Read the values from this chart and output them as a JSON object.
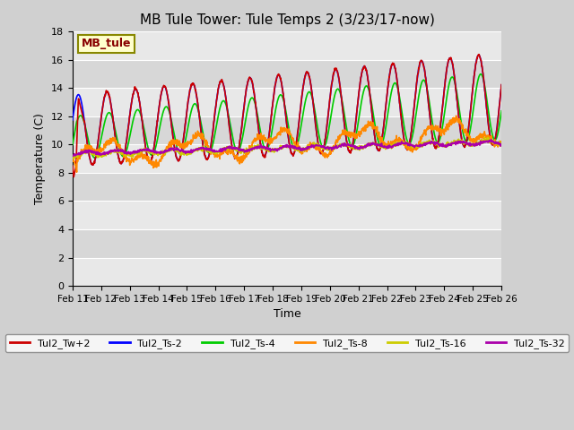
{
  "title": "MB Tule Tower: Tule Temps 2 (3/23/17-now)",
  "xlabel": "Time",
  "ylabel": "Temperature (C)",
  "ylim": [
    0,
    18
  ],
  "yticks": [
    0,
    2,
    4,
    6,
    8,
    10,
    12,
    14,
    16,
    18
  ],
  "x_labels": [
    "Feb 11",
    "Feb 12",
    "Feb 13",
    "Feb 14",
    "Feb 15",
    "Feb 16",
    "Feb 17",
    "Feb 18",
    "Feb 19",
    "Feb 20",
    "Feb 21",
    "Feb 22",
    "Feb 23",
    "Feb 24",
    "Feb 25",
    "Feb 26"
  ],
  "legend_title": "MB_tule",
  "series": {
    "Tul2_Tw+2": {
      "color": "#cc0000",
      "linewidth": 1.2
    },
    "Tul2_Ts-2": {
      "color": "#0000ff",
      "linewidth": 1.2
    },
    "Tul2_Ts-4": {
      "color": "#00cc00",
      "linewidth": 1.2
    },
    "Tul2_Ts-8": {
      "color": "#ff8800",
      "linewidth": 1.2
    },
    "Tul2_Ts-16": {
      "color": "#cccc00",
      "linewidth": 1.2
    },
    "Tul2_Ts-32": {
      "color": "#aa00aa",
      "linewidth": 1.2
    }
  },
  "bg_inner": "#e8e8e8",
  "bg_outer": "#d0d0d0",
  "grid_color": "#ffffff",
  "annotation_box_color": "#ffffcc",
  "annotation_text_color": "#880000"
}
